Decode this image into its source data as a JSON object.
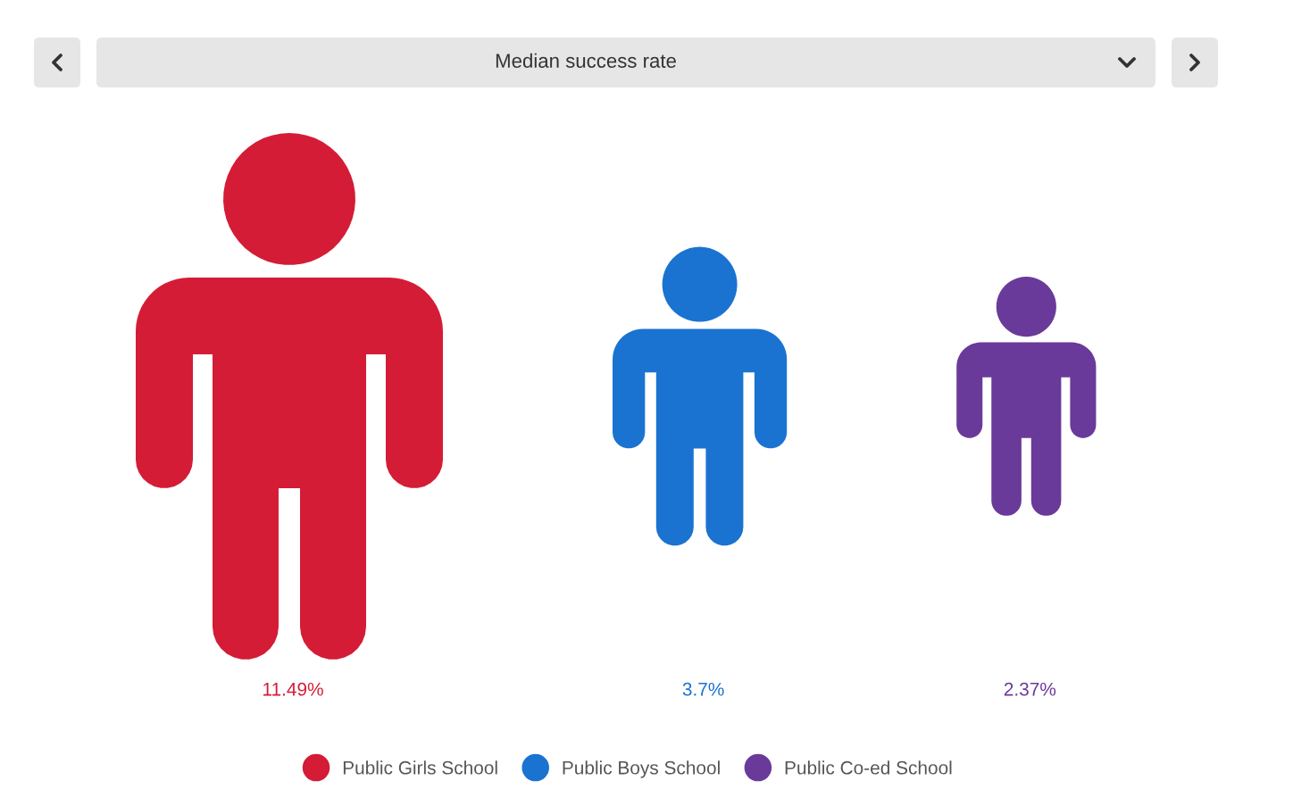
{
  "chart_data": {
    "type": "other",
    "title": "Median success rate",
    "categories": [
      "Public Girls School",
      "Public Boys School",
      "Public Co-ed School"
    ],
    "values": [
      11.49,
      3.7,
      2.37
    ],
    "colors": [
      "#d41c36",
      "#1a73d1",
      "#6a3a9a"
    ],
    "value_labels": [
      "11.49%",
      "3.7%",
      "2.37%"
    ]
  }
}
